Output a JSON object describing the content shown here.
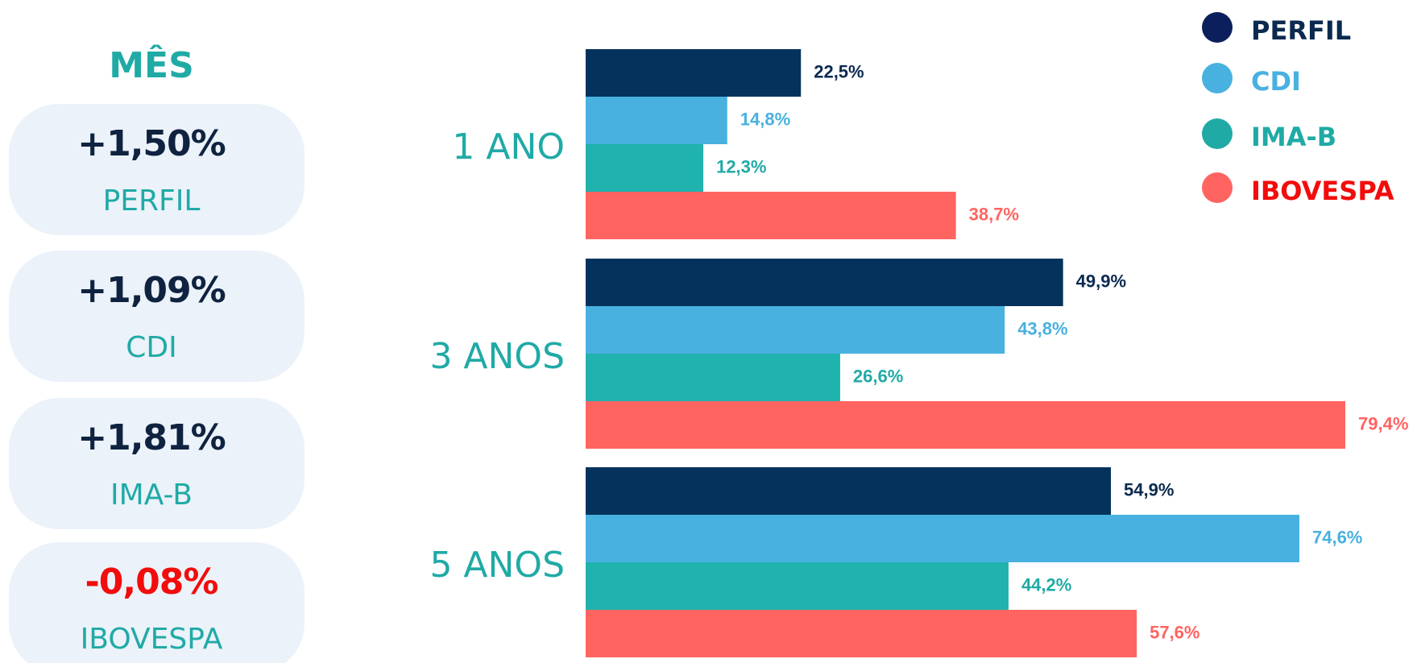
{
  "month": {
    "title": "MÊS",
    "items": [
      {
        "value": "+1,50%",
        "name": "PERFIL",
        "color": "#0f2340"
      },
      {
        "value": "+1,09%",
        "name": "CDI",
        "color": "#0f2340"
      },
      {
        "value": "+1,81%",
        "name": "IMA-B",
        "color": "#0f2340"
      },
      {
        "value": "-0,08%",
        "name": "IBOVESPA",
        "color": "#f20c0c"
      }
    ]
  },
  "chart_data": {
    "type": "bar",
    "orientation": "horizontal",
    "categories": [
      "1 ANO",
      "3 ANOS",
      "5 ANOS"
    ],
    "series": [
      {
        "name": "PERFIL",
        "color": "#04325c",
        "marker_color": "#0b1f5c",
        "text_color": "#0b2a4f",
        "values": [
          22.5,
          49.9,
          54.9
        ],
        "value_labels": [
          "22,5%",
          "49,9%",
          "54,9%"
        ]
      },
      {
        "name": "CDI",
        "color": "#48b1e0",
        "marker_color": "#48b1e0",
        "text_color": "#48b1e0",
        "values": [
          14.8,
          43.8,
          74.6
        ],
        "value_labels": [
          "14,8%",
          "43,8%",
          "74,6%"
        ]
      },
      {
        "name": "IMA-B",
        "color": "#20b2ad",
        "marker_color": "#20aaa6",
        "text_color": "#20aaa6",
        "values": [
          12.3,
          26.6,
          44.2
        ],
        "value_labels": [
          "12,3%",
          "26,6%",
          "44,2%"
        ]
      },
      {
        "name": "IBOVESPA",
        "color": "#ff6461",
        "marker_color": "#ff6461",
        "text_color": "#f20c0c",
        "values": [
          38.7,
          79.4,
          57.6
        ],
        "value_labels": [
          "38,7%",
          "79,4%",
          "57,6%"
        ]
      }
    ],
    "legend": "top-right"
  }
}
